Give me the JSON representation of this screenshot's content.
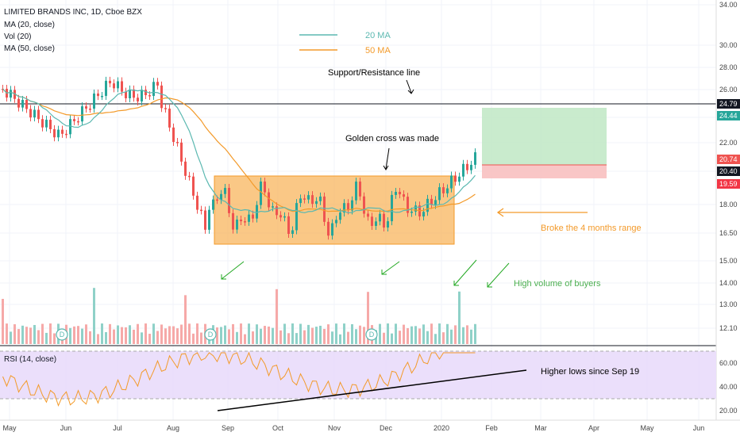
{
  "header": {
    "symbol_line": "LIMITED BRANDS INC, 1D, Cboe BZX",
    "ma20": "MA (20, close)",
    "vol": "Vol (20)",
    "ma50": "MA (50, close)"
  },
  "legend": {
    "ma20_label": "20 MA",
    "ma50_label": "50 MA",
    "ma20_color": "#5bb8b0",
    "ma50_color": "#f39a2a"
  },
  "annotations": {
    "support": "Support/Resistance line",
    "golden": "Golden cross was made",
    "broke": "Broke the 4 months range",
    "volume": "High volume of buyers",
    "higher_lows": "Higher lows since Sep 19"
  },
  "rsi": {
    "label": "RSI (14, close)",
    "ticks": [
      "60.00",
      "40.00",
      "20.00"
    ]
  },
  "price_tags": [
    {
      "text": "24.79",
      "value": 24.79,
      "color": "#131722"
    },
    {
      "text": "24.44",
      "value": 24.44,
      "color": "#26a69a"
    },
    {
      "text": "20.74",
      "value": 20.74,
      "color": "#ef5350"
    },
    {
      "text": "20.40",
      "value": 20.4,
      "color": "#131722"
    },
    {
      "text": "19.59",
      "value": 19.59,
      "color": "#f23645"
    }
  ],
  "markers": [
    "D",
    "D",
    "D"
  ],
  "chart_data": {
    "type": "candlestick",
    "title": "LIMITED BRANDS INC, 1D, Cboe BZX",
    "x_ticks": [
      "May",
      "Jun",
      "Jul",
      "Aug",
      "Sep",
      "Oct",
      "Nov",
      "Dec",
      "2020",
      "Feb",
      "Mar",
      "Apr",
      "May",
      "Jun"
    ],
    "y_ticks": [
      "34.00",
      "30.00",
      "28.00",
      "26.00",
      "24.00",
      "22.00",
      "20.00",
      "18.00",
      "16.50",
      "15.00",
      "14.00",
      "13.00",
      "12.10"
    ],
    "support_resistance": 24.79,
    "range_box": {
      "from": "2019-08-26",
      "to": "2020-01-09",
      "low": 15.9,
      "high": 19.9
    },
    "target_zone": {
      "low": 20.74,
      "high": 24.44
    },
    "stop_zone": {
      "low": 19.59,
      "high": 20.74
    },
    "rsi_range": [
      18,
      70
    ],
    "rsi_levels": [
      30,
      70
    ]
  }
}
